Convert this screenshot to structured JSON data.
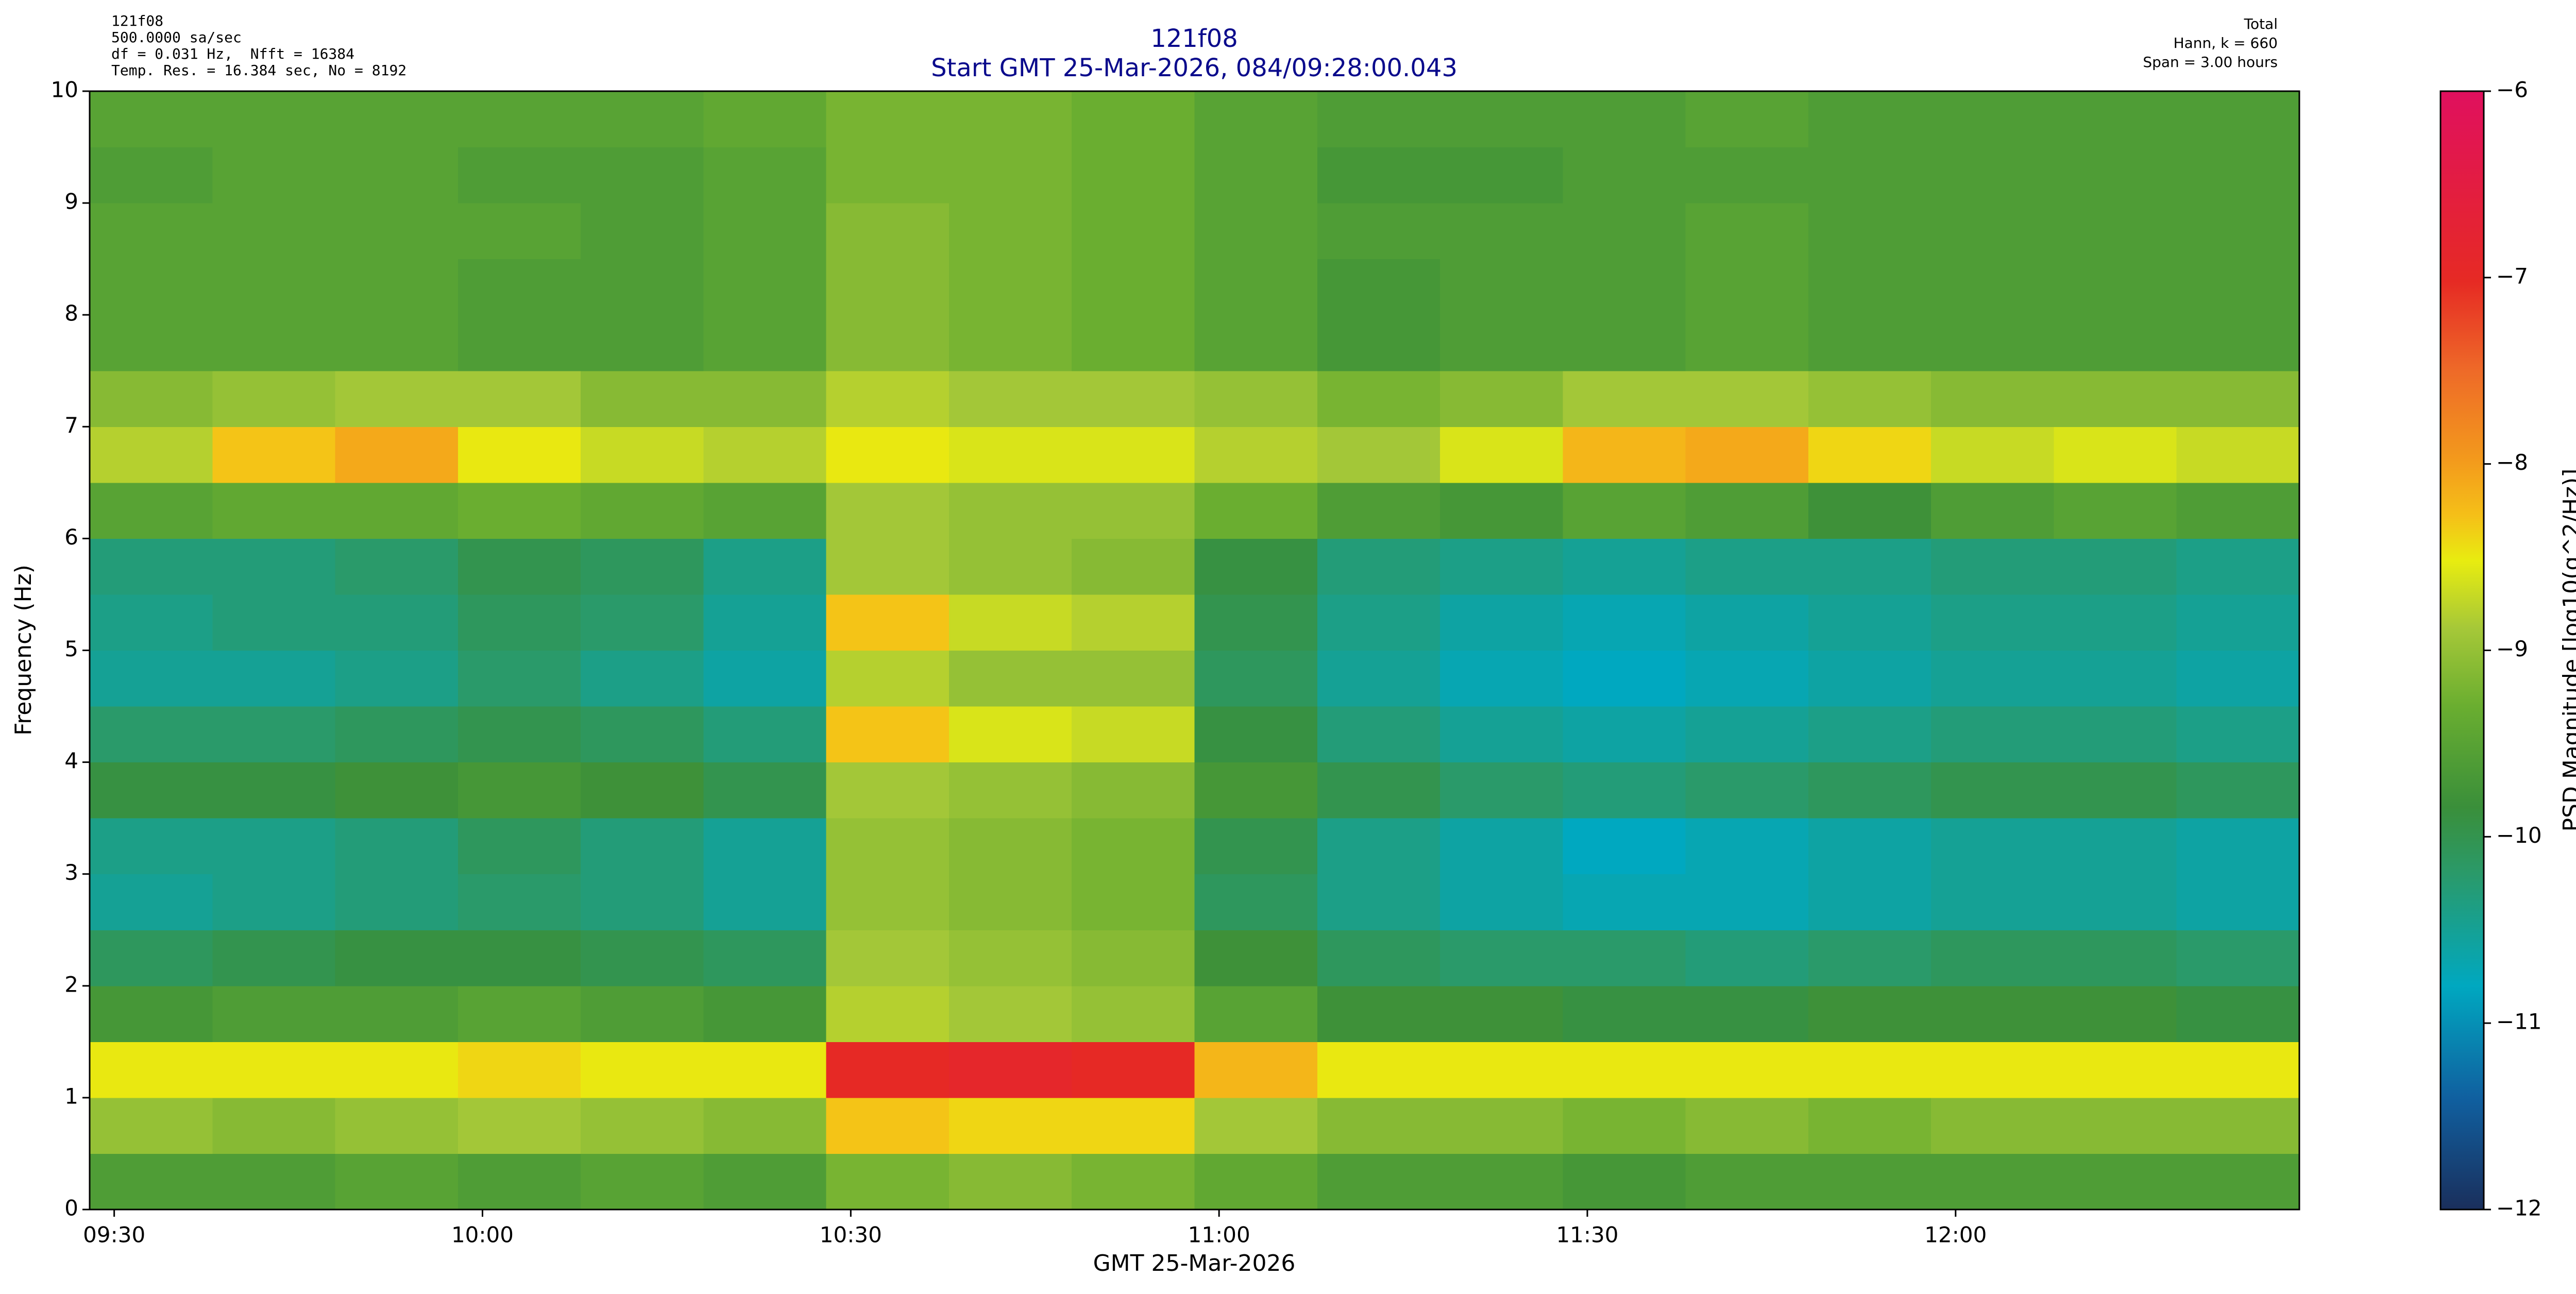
{
  "chart_data": {
    "type": "heatmap",
    "title": "121f08",
    "subtitle": "Start GMT 25-Mar-2026, 084/09:28:00.043",
    "notes_left": [
      "121f08",
      "500.0000 sa/sec",
      "df = 0.031 Hz,  Nfft = 16384",
      "Temp. Res. = 16.384 sec, No = 8192"
    ],
    "notes_right": [
      "Total",
      "Hann, k = 660",
      "Span = 3.00 hours"
    ],
    "xlabel": "GMT 25-Mar-2026",
    "ylabel": "Frequency (Hz)",
    "colorbar_label": "PSD Magnitude [log10(g^2/Hz)]",
    "xlim": [
      568,
      748
    ],
    "xticks": [
      {
        "value": 570,
        "label": "09:30"
      },
      {
        "value": 600,
        "label": "10:00"
      },
      {
        "value": 630,
        "label": "10:30"
      },
      {
        "value": 660,
        "label": "11:00"
      },
      {
        "value": 690,
        "label": "11:30"
      },
      {
        "value": 720,
        "label": "12:00"
      }
    ],
    "ylim": [
      0,
      10
    ],
    "yticks": [
      0,
      1,
      2,
      3,
      4,
      5,
      6,
      7,
      8,
      9,
      10
    ],
    "zlim": [
      -12,
      -6
    ],
    "zticks": [
      {
        "value": -12,
        "label": "−12"
      },
      {
        "value": -11,
        "label": "−11"
      },
      {
        "value": -10,
        "label": "−10"
      },
      {
        "value": -9,
        "label": "−9"
      },
      {
        "value": -8,
        "label": "−8"
      },
      {
        "value": -7,
        "label": "−7"
      },
      {
        "value": -6,
        "label": "−6"
      }
    ],
    "x": [
      573,
      583,
      593,
      603,
      613,
      623,
      633,
      643,
      653,
      663,
      673,
      683,
      693,
      703,
      713,
      723,
      733,
      743
    ],
    "y": [
      0.25,
      0.75,
      1.25,
      1.75,
      2.25,
      2.75,
      3.25,
      3.75,
      4.25,
      4.75,
      5.25,
      5.75,
      6.25,
      6.75,
      7.25,
      7.75,
      8.25,
      8.75,
      9.25,
      9.75
    ],
    "values": [
      [
        -9.6,
        -9.6,
        -9.5,
        -9.6,
        -9.5,
        -9.6,
        -9.2,
        -9.1,
        -9.2,
        -9.4,
        -9.6,
        -9.6,
        -9.7,
        -9.6,
        -9.6,
        -9.6,
        -9.6,
        -9.6
      ],
      [
        -9.0,
        -9.1,
        -9.0,
        -8.9,
        -9.0,
        -9.1,
        -8.3,
        -8.4,
        -8.4,
        -8.9,
        -9.1,
        -9.1,
        -9.2,
        -9.1,
        -9.2,
        -9.1,
        -9.1,
        -9.1
      ],
      [
        -8.5,
        -8.5,
        -8.5,
        -8.4,
        -8.5,
        -8.5,
        -7.0,
        -6.9,
        -7.0,
        -8.2,
        -8.5,
        -8.5,
        -8.5,
        -8.5,
        -8.5,
        -8.5,
        -8.5,
        -8.5
      ],
      [
        -9.7,
        -9.6,
        -9.6,
        -9.5,
        -9.6,
        -9.7,
        -8.8,
        -8.9,
        -9.0,
        -9.5,
        -9.8,
        -9.8,
        -9.9,
        -9.9,
        -9.8,
        -9.8,
        -9.8,
        -9.9
      ],
      [
        -10.1,
        -10.0,
        -9.9,
        -9.9,
        -10.0,
        -10.1,
        -8.9,
        -9.0,
        -9.1,
        -9.8,
        -10.1,
        -10.2,
        -10.2,
        -10.3,
        -10.2,
        -10.1,
        -10.1,
        -10.2
      ],
      [
        -10.5,
        -10.4,
        -10.3,
        -10.2,
        -10.3,
        -10.5,
        -9.0,
        -9.1,
        -9.2,
        -10.1,
        -10.4,
        -10.6,
        -10.7,
        -10.7,
        -10.6,
        -10.5,
        -10.5,
        -10.6
      ],
      [
        -10.4,
        -10.4,
        -10.3,
        -10.1,
        -10.3,
        -10.5,
        -9.0,
        -9.1,
        -9.2,
        -10.0,
        -10.4,
        -10.6,
        -10.8,
        -10.7,
        -10.6,
        -10.5,
        -10.5,
        -10.6
      ],
      [
        -9.9,
        -9.9,
        -9.8,
        -9.7,
        -9.8,
        -10.0,
        -8.9,
        -9.0,
        -9.1,
        -9.7,
        -10.0,
        -10.2,
        -10.3,
        -10.2,
        -10.1,
        -10.0,
        -10.0,
        -10.1
      ],
      [
        -10.2,
        -10.2,
        -10.1,
        -10.0,
        -10.1,
        -10.3,
        -8.3,
        -8.6,
        -8.7,
        -9.9,
        -10.3,
        -10.5,
        -10.6,
        -10.5,
        -10.4,
        -10.3,
        -10.3,
        -10.4
      ],
      [
        -10.5,
        -10.5,
        -10.4,
        -10.2,
        -10.4,
        -10.6,
        -8.8,
        -9.0,
        -9.0,
        -10.1,
        -10.5,
        -10.7,
        -10.8,
        -10.7,
        -10.6,
        -10.5,
        -10.5,
        -10.6
      ],
      [
        -10.4,
        -10.3,
        -10.3,
        -10.1,
        -10.2,
        -10.5,
        -8.3,
        -8.7,
        -8.8,
        -10.0,
        -10.4,
        -10.6,
        -10.7,
        -10.6,
        -10.5,
        -10.4,
        -10.4,
        -10.5
      ],
      [
        -10.3,
        -10.3,
        -10.2,
        -10.0,
        -10.1,
        -10.4,
        -8.9,
        -9.0,
        -9.1,
        -9.9,
        -10.3,
        -10.4,
        -10.5,
        -10.4,
        -10.4,
        -10.3,
        -10.3,
        -10.4
      ],
      [
        -9.5,
        -9.4,
        -9.4,
        -9.3,
        -9.4,
        -9.5,
        -8.9,
        -9.0,
        -9.0,
        -9.3,
        -9.6,
        -9.7,
        -9.5,
        -9.6,
        -9.8,
        -9.6,
        -9.5,
        -9.6
      ],
      [
        -8.8,
        -8.3,
        -8.1,
        -8.5,
        -8.7,
        -8.8,
        -8.5,
        -8.6,
        -8.6,
        -8.8,
        -8.9,
        -8.6,
        -8.2,
        -8.1,
        -8.4,
        -8.7,
        -8.6,
        -8.7
      ],
      [
        -9.1,
        -9.0,
        -8.9,
        -8.9,
        -9.1,
        -9.1,
        -8.8,
        -8.9,
        -8.9,
        -9.0,
        -9.2,
        -9.1,
        -8.9,
        -8.9,
        -9.0,
        -9.1,
        -9.1,
        -9.1
      ],
      [
        -9.5,
        -9.5,
        -9.5,
        -9.6,
        -9.6,
        -9.5,
        -9.1,
        -9.2,
        -9.3,
        -9.5,
        -9.7,
        -9.6,
        -9.6,
        -9.5,
        -9.6,
        -9.6,
        -9.6,
        -9.6
      ],
      [
        -9.5,
        -9.5,
        -9.5,
        -9.6,
        -9.6,
        -9.5,
        -9.1,
        -9.2,
        -9.3,
        -9.5,
        -9.7,
        -9.6,
        -9.6,
        -9.5,
        -9.6,
        -9.6,
        -9.6,
        -9.6
      ],
      [
        -9.5,
        -9.5,
        -9.5,
        -9.5,
        -9.6,
        -9.5,
        -9.1,
        -9.2,
        -9.3,
        -9.5,
        -9.6,
        -9.6,
        -9.6,
        -9.5,
        -9.6,
        -9.6,
        -9.6,
        -9.6
      ],
      [
        -9.6,
        -9.5,
        -9.5,
        -9.6,
        -9.6,
        -9.5,
        -9.2,
        -9.2,
        -9.3,
        -9.5,
        -9.7,
        -9.7,
        -9.6,
        -9.6,
        -9.6,
        -9.6,
        -9.6,
        -9.6
      ],
      [
        -9.5,
        -9.5,
        -9.5,
        -9.5,
        -9.5,
        -9.4,
        -9.2,
        -9.2,
        -9.3,
        -9.5,
        -9.6,
        -9.6,
        -9.6,
        -9.5,
        -9.6,
        -9.6,
        -9.6,
        -9.6
      ]
    ]
  }
}
